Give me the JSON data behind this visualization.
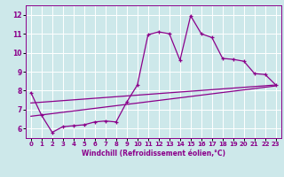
{
  "xlabel": "Windchill (Refroidissement éolien,°C)",
  "background_color": "#cde8ea",
  "grid_color": "#ffffff",
  "line_color": "#8b008b",
  "xlim": [
    -0.5,
    23.5
  ],
  "ylim": [
    5.5,
    12.5
  ],
  "yticks": [
    6,
    7,
    8,
    9,
    10,
    11,
    12
  ],
  "xticks": [
    0,
    1,
    2,
    3,
    4,
    5,
    6,
    7,
    8,
    9,
    10,
    11,
    12,
    13,
    14,
    15,
    16,
    17,
    18,
    19,
    20,
    21,
    22,
    23
  ],
  "line1_x": [
    0,
    1,
    2,
    3,
    4,
    5,
    6,
    7,
    8,
    9,
    10,
    11,
    12,
    13,
    14,
    15,
    16,
    17,
    18,
    19,
    20,
    21,
    22,
    23
  ],
  "line1_y": [
    7.9,
    6.7,
    5.8,
    6.1,
    6.15,
    6.2,
    6.35,
    6.4,
    6.35,
    7.4,
    8.3,
    10.95,
    11.1,
    11.0,
    9.6,
    11.95,
    11.0,
    10.8,
    9.7,
    9.65,
    9.55,
    8.9,
    8.85,
    8.3
  ],
  "line2_x": [
    0,
    23
  ],
  "line2_y": [
    6.65,
    8.25
  ],
  "line3_x": [
    0,
    23
  ],
  "line3_y": [
    7.35,
    8.3
  ],
  "xlabel_fontsize": 5.5,
  "tick_fontsize": 5.0
}
